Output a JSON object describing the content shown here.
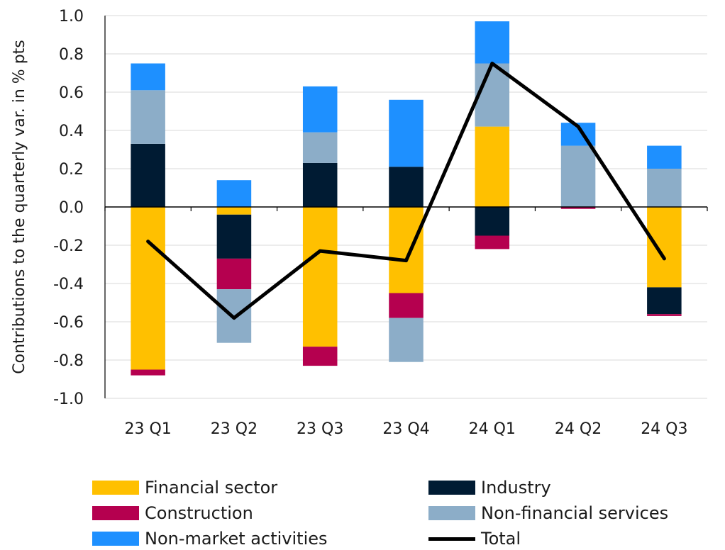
{
  "chart_data": {
    "type": "bar",
    "stacked": true,
    "categories": [
      "23 Q1",
      "23 Q2",
      "23 Q3",
      "23 Q4",
      "24 Q1",
      "24 Q2",
      "24 Q3"
    ],
    "ylabel": "Contributions to the quarterly var. in % pts",
    "ylim": [
      -1.0,
      1.0
    ],
    "yticks": [
      "1.0",
      "0.8",
      "0.6",
      "0.4",
      "0.2",
      "0.0",
      "-0.2",
      "-0.4",
      "-0.6",
      "-0.8",
      "-1.0"
    ],
    "ytick_values": [
      1.0,
      0.8,
      0.6,
      0.4,
      0.2,
      0.0,
      -0.2,
      -0.4,
      -0.6,
      -0.8,
      -1.0
    ],
    "grid": true,
    "legend_position": "bottom",
    "series": [
      {
        "name": "Financial sector",
        "color": "#FFC000",
        "values": [
          -0.85,
          -0.04,
          -0.73,
          -0.45,
          0.42,
          0.0,
          -0.42
        ]
      },
      {
        "name": "Industry",
        "color": "#001B33",
        "values": [
          0.33,
          -0.23,
          0.23,
          0.21,
          -0.15,
          0.0,
          -0.14
        ]
      },
      {
        "name": "Construction",
        "color": "#B5004F",
        "values": [
          -0.03,
          -0.16,
          -0.1,
          -0.13,
          -0.07,
          -0.01,
          -0.01
        ]
      },
      {
        "name": "Non-financial services",
        "color": "#8CADC8",
        "values": [
          0.28,
          -0.28,
          0.16,
          -0.23,
          0.33,
          0.32,
          0.2
        ]
      },
      {
        "name": "Non-market activities",
        "color": "#1E90FF",
        "values": [
          0.14,
          0.14,
          0.24,
          0.35,
          0.22,
          0.12,
          0.12
        ]
      }
    ],
    "total": {
      "name": "Total",
      "color": "#000000",
      "values": [
        -0.18,
        -0.58,
        -0.23,
        -0.28,
        0.75,
        0.42,
        -0.27
      ]
    }
  }
}
